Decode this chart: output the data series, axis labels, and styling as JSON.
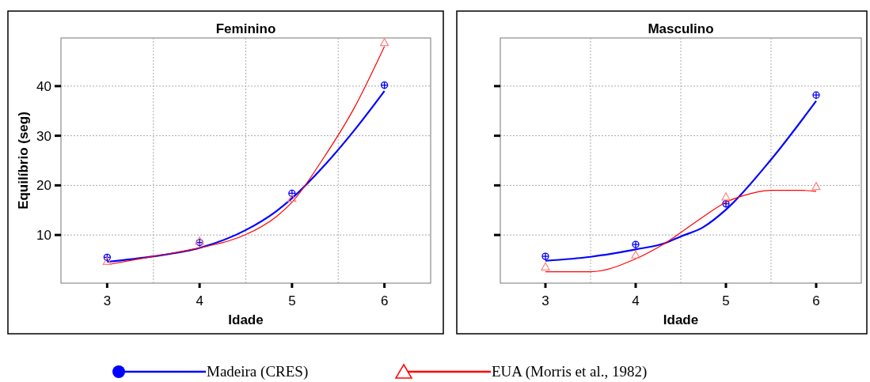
{
  "chart_data": [
    {
      "type": "line",
      "title": "Feminino",
      "xlabel": "Idade",
      "ylabel": "Equilíbrio (seg)",
      "xlim": [
        2.5,
        6.5
      ],
      "ylim": [
        0.3,
        49.7
      ],
      "xticks": [
        3,
        {
          "value": 3.5,
          "label": null
        },
        4,
        {
          "value": 4.5,
          "label": null
        },
        5,
        {
          "value": 5.5,
          "label": null
        },
        6
      ],
      "yticks": [
        10,
        20,
        30,
        40
      ],
      "grid": true,
      "legend": "bottom",
      "series": [
        {
          "name": "Madeira (CRES)",
          "color": "#0000ff",
          "marker": "none",
          "x": [
            3,
            3.5,
            4,
            4.5,
            4.83,
            5,
            5.33,
            5.67,
            6
          ],
          "values": [
            4.6,
            5.7,
            7.4,
            11,
            14.8,
            17.4,
            23.6,
            31,
            39
          ]
        },
        {
          "type": "scatter",
          "color": "#0000ff",
          "marker": "circle",
          "x": [
            3,
            4,
            5,
            6
          ],
          "values": [
            5.5,
            8.5,
            18.4,
            40.2
          ]
        },
        {
          "name": "EUA (Morris et al., 1982)",
          "color": "#ff0000",
          "marker": "none",
          "x": [
            3,
            3.5,
            4,
            4.33,
            4.5,
            4.83,
            5,
            5.33,
            5.67,
            6
          ],
          "values": [
            4,
            5.7,
            7.4,
            8.9,
            10.1,
            13.7,
            16.6,
            25.2,
            35.5,
            48
          ]
        },
        {
          "type": "scatter",
          "color": "#ff8080",
          "marker": "triangle",
          "x": [
            3,
            4,
            5,
            6
          ],
          "values": [
            4.7,
            8.8,
            17.4,
            48.8
          ]
        }
      ]
    },
    {
      "type": "line",
      "title": "Masculino",
      "xlabel": "Idade",
      "xlim": [
        2.5,
        6.5
      ],
      "ylim": [
        0.3,
        49.7
      ],
      "xticks": [
        3,
        {
          "value": 3.5,
          "label": null
        },
        4,
        {
          "value": 4.5,
          "label": null
        },
        5,
        {
          "value": 5.5,
          "label": null
        },
        6
      ],
      "yticks": [
        10,
        20,
        30,
        40
      ],
      "grid": true,
      "tick_labels": "x",
      "series": [
        {
          "color": "#0000ff",
          "marker": "none",
          "x": [
            3,
            3.5,
            4,
            4.33,
            4.5,
            4.75,
            5,
            5.5,
            6
          ],
          "values": [
            4.8,
            5.6,
            7.1,
            8.4,
            9.7,
            11.6,
            15.1,
            25.2,
            37
          ]
        },
        {
          "type": "scatter",
          "color": "#0000ff",
          "marker": "circle",
          "x": [
            3,
            4,
            5,
            6
          ],
          "values": [
            5.7,
            8.1,
            16.3,
            38.2
          ]
        },
        {
          "color": "#ff0000",
          "marker": "none",
          "x": [
            3,
            3.5,
            4,
            4.33,
            4.75,
            5,
            5.17,
            5.5,
            5.83,
            6
          ],
          "values": [
            2.6,
            2.6,
            5.2,
            8.4,
            13.7,
            16.6,
            17.8,
            19,
            19,
            18.8
          ]
        },
        {
          "type": "scatter",
          "color": "#ff8080",
          "marker": "triangle",
          "x": [
            3,
            4,
            5,
            6
          ],
          "values": [
            3.6,
            6,
            17.7,
            19.8
          ]
        }
      ]
    }
  ]
}
